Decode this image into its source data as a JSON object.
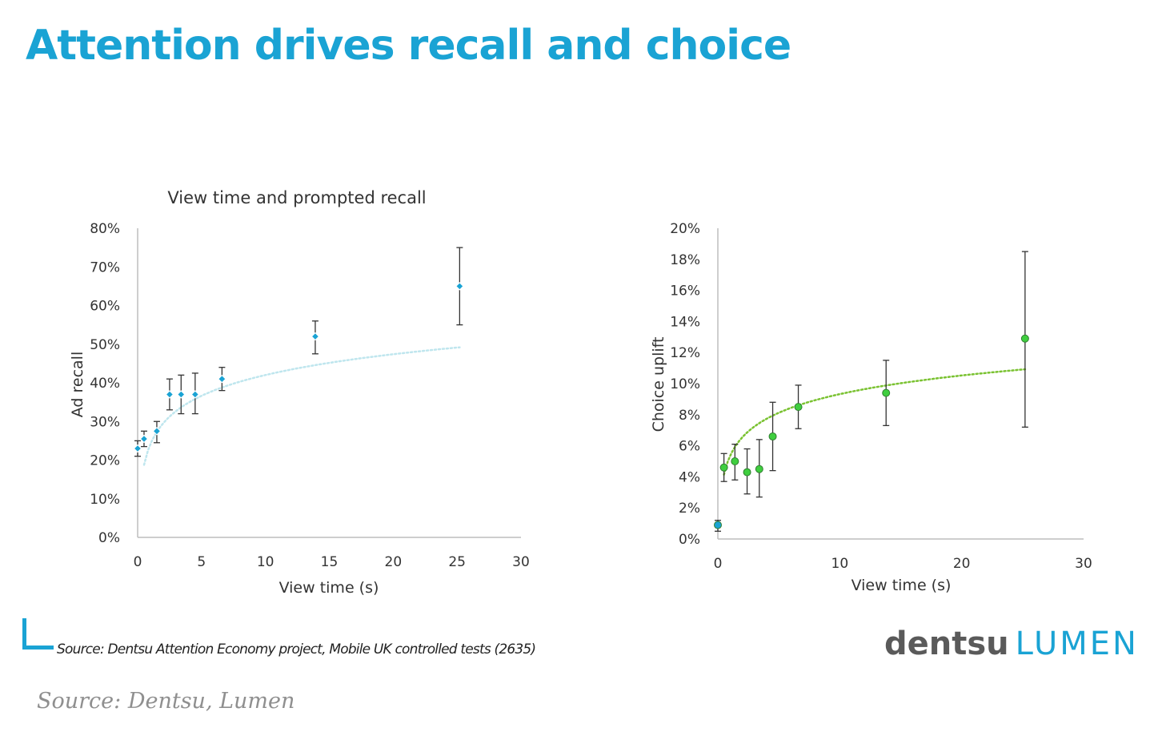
{
  "page": {
    "title": "Attention drives recall and choice",
    "source_note": "Source: Dentsu Attention Economy project, Mobile UK controlled tests (2635)",
    "caption": "Source: Dentsu, Lumen",
    "logo": {
      "part1": "dentsu",
      "part2": "LUMEN"
    },
    "colors": {
      "title": "#1aa3d4",
      "recall_marker": "#1aa3d4",
      "choice_marker": "#3fce3f",
      "choice_trend": "#7ac231",
      "error_bar": "#333333",
      "axis": "#bdbdbd",
      "logo_dark": "#5a5a5a",
      "logo_accent": "#1aa3d4"
    },
    "icons": {
      "corner_mark": "corner-bracket-icon"
    }
  },
  "chart_data": [
    {
      "type": "scatter",
      "title": "View time and prompted recall",
      "xlabel": "View time (s)",
      "ylabel": "Ad recall",
      "xlim": [
        0,
        30
      ],
      "ylim": [
        0,
        0.8
      ],
      "x_ticks": [
        0,
        5,
        10,
        15,
        20,
        25,
        30
      ],
      "y_ticks": [
        0,
        0.1,
        0.2,
        0.3,
        0.4,
        0.5,
        0.6,
        0.7,
        0.8
      ],
      "y_tick_labels": [
        "0%",
        "10%",
        "20%",
        "30%",
        "40%",
        "50%",
        "60%",
        "70%",
        "80%"
      ],
      "grid": false,
      "legend": "none",
      "trendline": "logarithmic (dotted)",
      "points": [
        {
          "x": 0,
          "y": 0.23,
          "err_low": 0.21,
          "err_high": 0.25
        },
        {
          "x": 0.5,
          "y": 0.255,
          "err_low": 0.235,
          "err_high": 0.275
        },
        {
          "x": 1.5,
          "y": 0.275,
          "err_low": 0.245,
          "err_high": 0.3
        },
        {
          "x": 2.5,
          "y": 0.37,
          "err_low": 0.33,
          "err_high": 0.41
        },
        {
          "x": 3.4,
          "y": 0.37,
          "err_low": 0.32,
          "err_high": 0.42
        },
        {
          "x": 4.5,
          "y": 0.37,
          "err_low": 0.32,
          "err_high": 0.425
        },
        {
          "x": 6.6,
          "y": 0.41,
          "err_low": 0.38,
          "err_high": 0.44
        },
        {
          "x": 13.9,
          "y": 0.52,
          "err_low": 0.475,
          "err_high": 0.56
        },
        {
          "x": 25.2,
          "y": 0.65,
          "err_low": 0.55,
          "err_high": 0.75
        }
      ],
      "trend": {
        "a": 0.2415,
        "b": 0.0776,
        "x_from": 0.5,
        "x_to": 25.2
      }
    },
    {
      "type": "scatter",
      "title": "",
      "xlabel": "View time (s)",
      "ylabel": "Choice uplift",
      "xlim": [
        0,
        30
      ],
      "ylim": [
        0,
        0.2
      ],
      "x_ticks": [
        0,
        10,
        20,
        30
      ],
      "y_ticks": [
        0,
        0.02,
        0.04,
        0.06,
        0.08,
        0.1,
        0.12,
        0.14,
        0.16,
        0.18,
        0.2
      ],
      "y_tick_labels": [
        "0%",
        "2%",
        "4%",
        "6%",
        "8%",
        "10%",
        "12%",
        "14%",
        "16%",
        "18%",
        "20%"
      ],
      "grid": false,
      "legend": "none",
      "trendline": "logarithmic (dotted)",
      "points": [
        {
          "x": 0,
          "y": 0.009,
          "err_low": 0.005,
          "err_high": 0.012
        },
        {
          "x": 0.5,
          "y": 0.046,
          "err_low": 0.037,
          "err_high": 0.055
        },
        {
          "x": 1.4,
          "y": 0.05,
          "err_low": 0.038,
          "err_high": 0.061
        },
        {
          "x": 2.4,
          "y": 0.043,
          "err_low": 0.029,
          "err_high": 0.058
        },
        {
          "x": 3.4,
          "y": 0.045,
          "err_low": 0.027,
          "err_high": 0.064
        },
        {
          "x": 4.5,
          "y": 0.066,
          "err_low": 0.044,
          "err_high": 0.088
        },
        {
          "x": 6.6,
          "y": 0.085,
          "err_low": 0.071,
          "err_high": 0.099
        },
        {
          "x": 13.8,
          "y": 0.094,
          "err_low": 0.073,
          "err_high": 0.115
        },
        {
          "x": 25.2,
          "y": 0.129,
          "err_low": 0.072,
          "err_high": 0.185
        }
      ],
      "trend": {
        "a": 0.0534,
        "b": 0.0173,
        "x_from": 0.5,
        "x_to": 25.2
      }
    }
  ]
}
